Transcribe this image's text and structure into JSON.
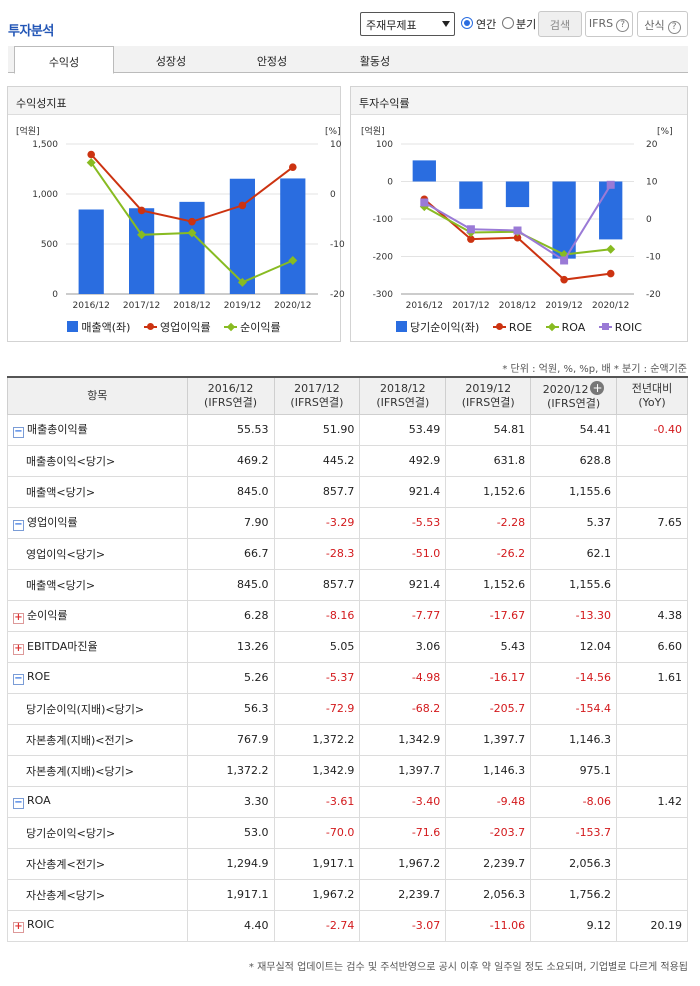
{
  "header": {
    "title": "투자분석",
    "select_value": "주재무제표",
    "radio_annual": "연간",
    "radio_quarter": "분기",
    "search_button": "검색",
    "ifrs_button": "IFRS",
    "formula_button": "산식",
    "help_glyph": "?"
  },
  "tabs": [
    "수익성",
    "성장성",
    "안정성",
    "활동성"
  ],
  "chart_left": {
    "panel_title": "수익성지표",
    "left_unit": "[억원]",
    "right_unit": "[%]",
    "legend": [
      "매출액(좌)",
      "영업이익률",
      "순이익률"
    ]
  },
  "chart_right": {
    "panel_title": "투자수익률",
    "left_unit": "[억원]",
    "right_unit": "[%]",
    "legend": [
      "당기순이익(좌)",
      "ROE",
      "ROA",
      "ROIC"
    ]
  },
  "chart_data": [
    {
      "type": "bar",
      "title": "수익성지표",
      "categories": [
        "2016/12",
        "2017/12",
        "2018/12",
        "2019/12",
        "2020/12"
      ],
      "left_axis": {
        "label": "[억원]",
        "ylim": [
          0,
          1500
        ],
        "ticks": [
          0,
          500,
          1000,
          1500
        ],
        "tick_labels": [
          "0",
          "500",
          "1,000",
          "1,500"
        ]
      },
      "right_axis": {
        "label": "[%]",
        "ylim": [
          -20,
          10
        ],
        "ticks": [
          -20,
          -10,
          0,
          10
        ],
        "tick_labels": [
          "-20",
          "-10",
          "0",
          "10"
        ]
      },
      "bar_series": {
        "name": "매출액(좌)",
        "axis": "left",
        "values": [
          845.0,
          857.7,
          921.4,
          1152.6,
          1155.6
        ],
        "color": "#2a6de0"
      },
      "line_series": [
        {
          "name": "영업이익률",
          "axis": "right",
          "values": [
            7.9,
            -3.29,
            -5.53,
            -2.28,
            5.37
          ],
          "color": "#cc3311",
          "marker": "circle"
        },
        {
          "name": "순이익률",
          "axis": "right",
          "values": [
            6.28,
            -8.16,
            -7.77,
            -17.67,
            -13.3
          ],
          "color": "#88bb22",
          "marker": "diamond"
        }
      ],
      "legend": "bottom"
    },
    {
      "type": "bar",
      "title": "투자수익률",
      "categories": [
        "2016/12",
        "2017/12",
        "2018/12",
        "2019/12",
        "2020/12"
      ],
      "left_axis": {
        "label": "[억원]",
        "ylim": [
          -300,
          100
        ],
        "ticks": [
          -300,
          -200,
          -100,
          0,
          100
        ],
        "tick_labels": [
          "-300",
          "-200",
          "-100",
          "0",
          "100"
        ]
      },
      "right_axis": {
        "label": "[%]",
        "ylim": [
          -20,
          20
        ],
        "ticks": [
          -20,
          -10,
          0,
          10,
          20
        ],
        "tick_labels": [
          "-20",
          "-10",
          "0",
          "10",
          "20"
        ]
      },
      "bar_series": {
        "name": "당기순이익(좌)",
        "axis": "left",
        "values": [
          56.3,
          -72.9,
          -68.2,
          -205.7,
          -154.4
        ],
        "color": "#2a6de0"
      },
      "line_series": [
        {
          "name": "ROE",
          "axis": "right",
          "values": [
            5.26,
            -5.37,
            -4.98,
            -16.17,
            -14.56
          ],
          "color": "#cc3311",
          "marker": "circle"
        },
        {
          "name": "ROA",
          "axis": "right",
          "values": [
            3.3,
            -3.61,
            -3.4,
            -9.48,
            -8.06
          ],
          "color": "#88bb22",
          "marker": "diamond"
        },
        {
          "name": "ROIC",
          "axis": "right",
          "values": [
            4.4,
            -2.74,
            -3.07,
            -11.06,
            9.12
          ],
          "color": "#9a7ad6",
          "marker": "square"
        }
      ],
      "legend": "bottom"
    }
  ],
  "unit_note": "* 단위 : 억원, %, %p, 배   * 분기 : 순액기준",
  "table": {
    "headers": [
      "항목",
      "2016/12",
      "2017/12",
      "2018/12",
      "2019/12",
      "2020/12",
      "전년대비"
    ],
    "header_sub": [
      "",
      "(IFRS연결)",
      "(IFRS연결)",
      "(IFRS연결)",
      "(IFRS연결)",
      "(IFRS연결)",
      "(YoY)"
    ],
    "expand_plus": "+",
    "rows": [
      {
        "label": "매출총이익률",
        "level": "main",
        "toggle": "−",
        "vals": [
          "55.53",
          "51.90",
          "53.49",
          "54.81",
          "54.41",
          "-0.40"
        ]
      },
      {
        "label": "매출총이익<당기>",
        "level": "sub",
        "toggle": "",
        "vals": [
          "469.2",
          "445.2",
          "492.9",
          "631.8",
          "628.8",
          ""
        ]
      },
      {
        "label": "매출액<당기>",
        "level": "sub",
        "toggle": "",
        "vals": [
          "845.0",
          "857.7",
          "921.4",
          "1,152.6",
          "1,155.6",
          ""
        ]
      },
      {
        "label": "영업이익률",
        "level": "main",
        "toggle": "−",
        "vals": [
          "7.90",
          "-3.29",
          "-5.53",
          "-2.28",
          "5.37",
          "7.65"
        ]
      },
      {
        "label": "영업이익<당기>",
        "level": "sub",
        "toggle": "",
        "vals": [
          "66.7",
          "-28.3",
          "-51.0",
          "-26.2",
          "62.1",
          ""
        ]
      },
      {
        "label": "매출액<당기>",
        "level": "sub",
        "toggle": "",
        "vals": [
          "845.0",
          "857.7",
          "921.4",
          "1,152.6",
          "1,155.6",
          ""
        ]
      },
      {
        "label": "순이익률",
        "level": "main",
        "toggle": "+",
        "vals": [
          "6.28",
          "-8.16",
          "-7.77",
          "-17.67",
          "-13.30",
          "4.38"
        ]
      },
      {
        "label": "EBITDA마진율",
        "level": "main",
        "toggle": "+",
        "vals": [
          "13.26",
          "5.05",
          "3.06",
          "5.43",
          "12.04",
          "6.60"
        ]
      },
      {
        "label": "ROE",
        "level": "main",
        "toggle": "−",
        "vals": [
          "5.26",
          "-5.37",
          "-4.98",
          "-16.17",
          "-14.56",
          "1.61"
        ]
      },
      {
        "label": "당기순이익(지배)<당기>",
        "level": "sub",
        "toggle": "",
        "vals": [
          "56.3",
          "-72.9",
          "-68.2",
          "-205.7",
          "-154.4",
          ""
        ]
      },
      {
        "label": "자본총계(지배)<전기>",
        "level": "sub",
        "toggle": "",
        "vals": [
          "767.9",
          "1,372.2",
          "1,342.9",
          "1,397.7",
          "1,146.3",
          ""
        ]
      },
      {
        "label": "자본총계(지배)<당기>",
        "level": "sub",
        "toggle": "",
        "vals": [
          "1,372.2",
          "1,342.9",
          "1,397.7",
          "1,146.3",
          "975.1",
          ""
        ]
      },
      {
        "label": "ROA",
        "level": "main",
        "toggle": "−",
        "vals": [
          "3.30",
          "-3.61",
          "-3.40",
          "-9.48",
          "-8.06",
          "1.42"
        ]
      },
      {
        "label": "당기순이익<당기>",
        "level": "sub",
        "toggle": "",
        "vals": [
          "53.0",
          "-70.0",
          "-71.6",
          "-203.7",
          "-153.7",
          ""
        ]
      },
      {
        "label": "자산총계<전기>",
        "level": "sub",
        "toggle": "",
        "vals": [
          "1,294.9",
          "1,917.1",
          "1,967.2",
          "2,239.7",
          "2,056.3",
          ""
        ]
      },
      {
        "label": "자산총계<당기>",
        "level": "sub",
        "toggle": "",
        "vals": [
          "1,917.1",
          "1,967.2",
          "2,239.7",
          "2,056.3",
          "1,756.2",
          ""
        ]
      },
      {
        "label": "ROIC",
        "level": "main",
        "toggle": "+",
        "vals": [
          "4.40",
          "-2.74",
          "-3.07",
          "-11.06",
          "9.12",
          "20.19"
        ]
      }
    ]
  },
  "footnote": "* 재무실적 업데이트는 검수 및 주석반영으로 공시 이후 약 일주일 정도 소요되며, 기업별로 다르게 적용됩"
}
